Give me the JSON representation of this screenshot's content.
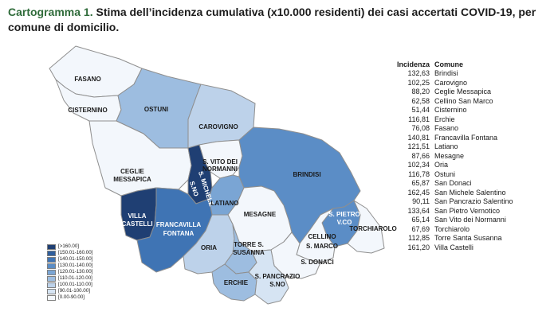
{
  "title": {
    "label": "Cartogramma 1.",
    "text": "Stima dell’incidenza cumulativa (x10.000 residenti) dei casi accertati COVID-19, per comune di domicilio."
  },
  "colors": {
    "c_gt160": "#1f3f73",
    "c_150_160": "#2f5e9c",
    "c_140_150": "#3f74b4",
    "c_130_140": "#5b8dc6",
    "c_120_130": "#7aa5d4",
    "c_110_120": "#9dbde0",
    "c_100_110": "#bdd2ea",
    "c_90_100": "#d6e4f3",
    "c_0_90": "#f3f7fc"
  },
  "legend": [
    {
      "label": "[>160.00]",
      "color": "#1f3f73"
    },
    {
      "label": "[150.01-160.00]",
      "color": "#2f5e9c"
    },
    {
      "label": "[140.01-150.00]",
      "color": "#3f74b4"
    },
    {
      "label": "[130.01-140.00]",
      "color": "#5b8dc6"
    },
    {
      "label": "[120.01-130.00]",
      "color": "#7aa5d4"
    },
    {
      "label": "[110.01-120.00]",
      "color": "#9dbde0"
    },
    {
      "label": "[100.01-110.00]",
      "color": "#bdd2ea"
    },
    {
      "label": "[90.01-100.00]",
      "color": "#d6e4f3"
    },
    {
      "label": "[0.00-90.00]",
      "color": "#f3f7fc"
    }
  ],
  "table": {
    "header_incidence": "Incidenza",
    "header_comune": "Comune",
    "rows": [
      {
        "value": "132,63",
        "comune": "Brindisi"
      },
      {
        "value": "102,25",
        "comune": "Carovigno"
      },
      {
        "value": "88,20",
        "comune": "Ceglie Messapica"
      },
      {
        "value": "62,58",
        "comune": "Cellino San Marco"
      },
      {
        "value": "51,44",
        "comune": "Cisternino"
      },
      {
        "value": "116,81",
        "comune": "Erchie"
      },
      {
        "value": "76,08",
        "comune": "Fasano"
      },
      {
        "value": "140,81",
        "comune": "Francavilla Fontana"
      },
      {
        "value": "121,51",
        "comune": "Latiano"
      },
      {
        "value": "87,66",
        "comune": "Mesagne"
      },
      {
        "value": "102,34",
        "comune": "Oria"
      },
      {
        "value": "116,78",
        "comune": "Ostuni"
      },
      {
        "value": "65,87",
        "comune": "San Donaci"
      },
      {
        "value": "162,45",
        "comune": "San Michele Salentino"
      },
      {
        "value": "90,11",
        "comune": "San Pancrazio Salentino"
      },
      {
        "value": "133,64",
        "comune": "San Pietro Vernotico"
      },
      {
        "value": "65,14",
        "comune": "San Vito dei Normanni"
      },
      {
        "value": "67,69",
        "comune": "Torchiarolo"
      },
      {
        "value": "112,85",
        "comune": "Torre Santa Susanna"
      },
      {
        "value": "161,20",
        "comune": "Villa Castelli"
      }
    ]
  },
  "map_labels": {
    "fasano": "FASANO",
    "cisternino": "CISTERNINO",
    "ostuni": "OSTUNI",
    "carovigno": "CAROVIGNO",
    "ceglie_1": "CEGLIE",
    "ceglie_2": "MESSAPICA",
    "svito_1": "S. VITO DEI",
    "svito_2": "NORMANNI",
    "smichele_1": "S. MICHELE",
    "smichele_2": "S.NO",
    "brindisi": "BRINDISI",
    "villa_1": "VILLA",
    "villa_2": "CASTELLI",
    "latiano": "LATIANO",
    "mesagne": "MESAGNE",
    "spietro_1": "S. PIETRO",
    "spietro_2": "V.CO",
    "torchiarolo": "TORCHIAROLO",
    "francavilla_1": "FRANCAVILLA",
    "francavilla_2": "FONTANA",
    "oria": "ORIA",
    "torre_1": "TORRE S.",
    "torre_2": "SUSANNA",
    "cellino_1": "CELLINO",
    "cellino_2": "S. MARCO",
    "sdonaci": "S. DONACI",
    "erchie": "ERCHIE",
    "spancrazio_1": "S. PANCRAZIO",
    "spancrazio_2": "S.NO"
  }
}
